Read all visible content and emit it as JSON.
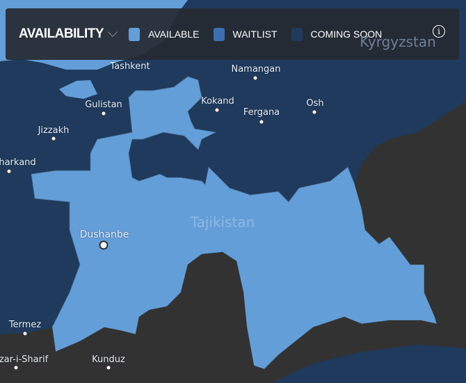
{
  "colors": {
    "available": "#639ed9",
    "waitlist": "#3c70b0",
    "coming_soon": "#1f3a5c",
    "unavailable": "#333232"
  },
  "legend": {
    "title": "AVAILABILITY",
    "items": [
      {
        "label": "AVAILABLE",
        "color": "#639ed9"
      },
      {
        "label": "WAITLIST",
        "color": "#3c70b0"
      },
      {
        "label": "COMING SOON",
        "color": "#1f3a5c"
      }
    ],
    "info_icon": "info-icon"
  },
  "map": {
    "countries": {
      "tajikistan": "Tajikistan",
      "kyrgyzstan": "Kyrgyzstan"
    },
    "cities": {
      "tashkent": "Tashkent",
      "namangan": "Namangan",
      "gulistan": "Gulistan",
      "kokand": "Kokand",
      "fergana": "Fergana",
      "osh": "Osh",
      "jizzakh": "Jizzakh",
      "samarkand": "harkand",
      "dushanbe": "Dushanbe",
      "termez": "Termez",
      "mazar": "zar-i-Sharif",
      "kunduz": "Kunduz"
    }
  }
}
